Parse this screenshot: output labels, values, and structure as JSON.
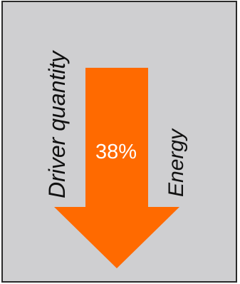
{
  "colors": {
    "background": "#cfcfd1",
    "border": "#2a2a2a",
    "arrow": "#ff6a00",
    "text": "#111111",
    "percent_text": "#ffffff"
  },
  "arrow": {
    "direction": "down",
    "label": "38%"
  },
  "labels": {
    "left": "Driver quantity",
    "right": "Energy"
  }
}
